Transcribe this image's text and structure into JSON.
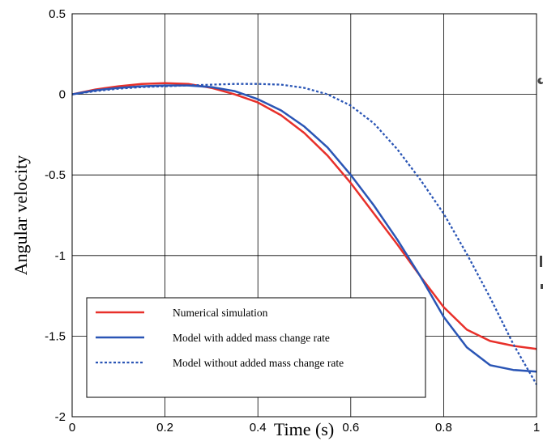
{
  "chart_data": {
    "type": "line",
    "title": "",
    "xlabel": "Time (s)",
    "ylabel": "Angular velocity",
    "xlim": [
      0,
      1
    ],
    "ylim": [
      -2,
      0.5
    ],
    "xticks": [
      0,
      0.2,
      0.4,
      0.6,
      0.8,
      1
    ],
    "xtick_labels": [
      "0",
      "0.2",
      "0.4",
      "0.6",
      "0.8",
      "1"
    ],
    "yticks": [
      -2,
      -1.5,
      -1,
      -0.5,
      0,
      0.5
    ],
    "ytick_labels": [
      "-2",
      "-1.5",
      "-1",
      "-0.5",
      "0",
      "0.5"
    ],
    "grid": true,
    "legend_position": "bottom-left",
    "series": [
      {
        "name": "Numerical simulation",
        "color": "#e8302a",
        "dash": "solid",
        "x": [
          0,
          0.05,
          0.1,
          0.15,
          0.2,
          0.25,
          0.3,
          0.35,
          0.4,
          0.45,
          0.5,
          0.55,
          0.6,
          0.65,
          0.7,
          0.75,
          0.8,
          0.85,
          0.9,
          0.95,
          1.0
        ],
        "y": [
          0,
          0.03,
          0.05,
          0.065,
          0.07,
          0.065,
          0.04,
          0.0,
          -0.05,
          -0.13,
          -0.24,
          -0.38,
          -0.55,
          -0.74,
          -0.93,
          -1.13,
          -1.32,
          -1.46,
          -1.53,
          -1.56,
          -1.58
        ]
      },
      {
        "name": "Model with added mass change rate",
        "color": "#2a55b5",
        "dash": "solid",
        "x": [
          0,
          0.05,
          0.1,
          0.15,
          0.2,
          0.25,
          0.3,
          0.35,
          0.4,
          0.45,
          0.5,
          0.55,
          0.6,
          0.65,
          0.7,
          0.75,
          0.8,
          0.85,
          0.9,
          0.95,
          1.0
        ],
        "y": [
          0,
          0.025,
          0.04,
          0.05,
          0.055,
          0.055,
          0.045,
          0.02,
          -0.03,
          -0.1,
          -0.2,
          -0.33,
          -0.5,
          -0.69,
          -0.9,
          -1.13,
          -1.38,
          -1.57,
          -1.68,
          -1.71,
          -1.72
        ]
      },
      {
        "name": "Model without added mass change rate",
        "color": "#2a55b5",
        "dash": "dotted",
        "x": [
          0,
          0.05,
          0.1,
          0.15,
          0.2,
          0.25,
          0.3,
          0.35,
          0.4,
          0.45,
          0.5,
          0.55,
          0.6,
          0.65,
          0.7,
          0.75,
          0.8,
          0.85,
          0.9,
          0.95,
          1.0
        ],
        "y": [
          0,
          0.02,
          0.035,
          0.045,
          0.05,
          0.055,
          0.06,
          0.065,
          0.065,
          0.06,
          0.04,
          0.0,
          -0.07,
          -0.18,
          -0.34,
          -0.53,
          -0.74,
          -0.99,
          -1.26,
          -1.55,
          -1.8
        ]
      }
    ]
  }
}
